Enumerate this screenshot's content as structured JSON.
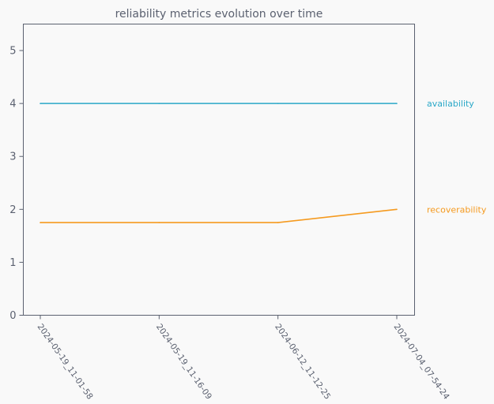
{
  "colors": {
    "background": "#f9f9f9",
    "text": "#5b6170",
    "axis": "#5b6170"
  },
  "chart_data": {
    "type": "line",
    "title": "reliability metrics evolution over time",
    "xlabel": "",
    "ylabel": "",
    "x": [
      "2024-05-19_11-01-58",
      "2024-05-19_11-16-09",
      "2024-06-12_11-12-25",
      "2024-07-04_07-54-24"
    ],
    "ylim": [
      0,
      5.5
    ],
    "yticks": [
      0,
      1,
      2,
      3,
      4,
      5
    ],
    "grid": false,
    "legend_placement": "right (inline labels)",
    "series": [
      {
        "name": "availability",
        "color": "#2aa8c8",
        "values": [
          4,
          4,
          4,
          4
        ]
      },
      {
        "name": "recoverability",
        "color": "#f59a1f",
        "values": [
          1.75,
          1.75,
          1.75,
          2
        ]
      }
    ]
  }
}
